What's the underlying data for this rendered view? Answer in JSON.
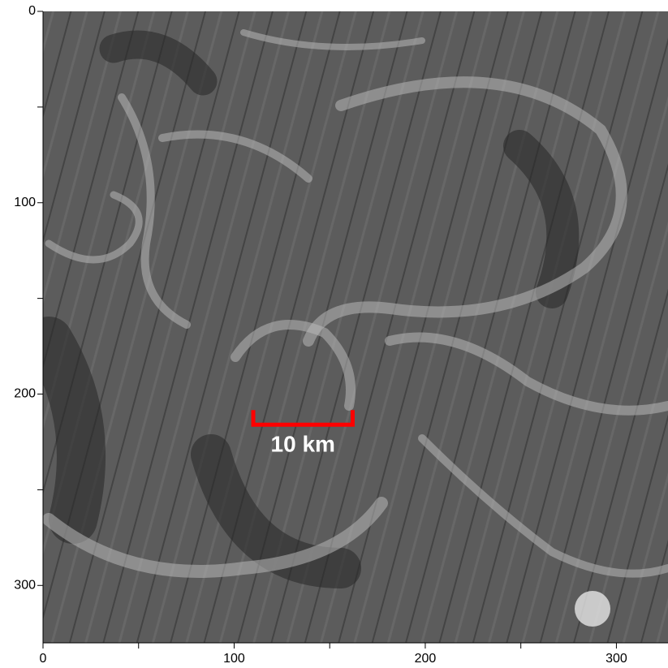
{
  "chart_data": {
    "type": "image",
    "xlim": [
      0,
      327
    ],
    "ylim": [
      330,
      0
    ],
    "xticks": [
      0,
      100,
      200,
      300
    ],
    "yticks": [
      0,
      100,
      200,
      300
    ],
    "xminorticks": [
      50,
      150,
      250
    ],
    "yminorticks": [
      50,
      150,
      250
    ],
    "scale_bar": {
      "label": "10 km",
      "x": [
        110,
        162
      ],
      "y": 216,
      "color": "#ff0000"
    }
  }
}
